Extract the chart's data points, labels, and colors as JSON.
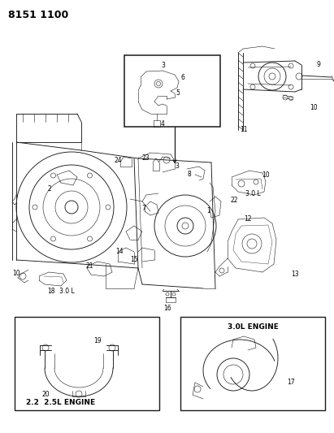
{
  "title": "8151 1100",
  "bg_color": "#ffffff",
  "line_color": "#1a1a1a",
  "fig_width": 4.11,
  "fig_height": 5.33,
  "dpi": 100,
  "labels": {
    "part_number": "8151 1100",
    "box1_label": "2.2  2.5L ENGINE",
    "box2_label": "3.0L ENGINE",
    "label_3_0L_mid": "3.0 L",
    "label_3_0L_low": "3.0 L"
  }
}
